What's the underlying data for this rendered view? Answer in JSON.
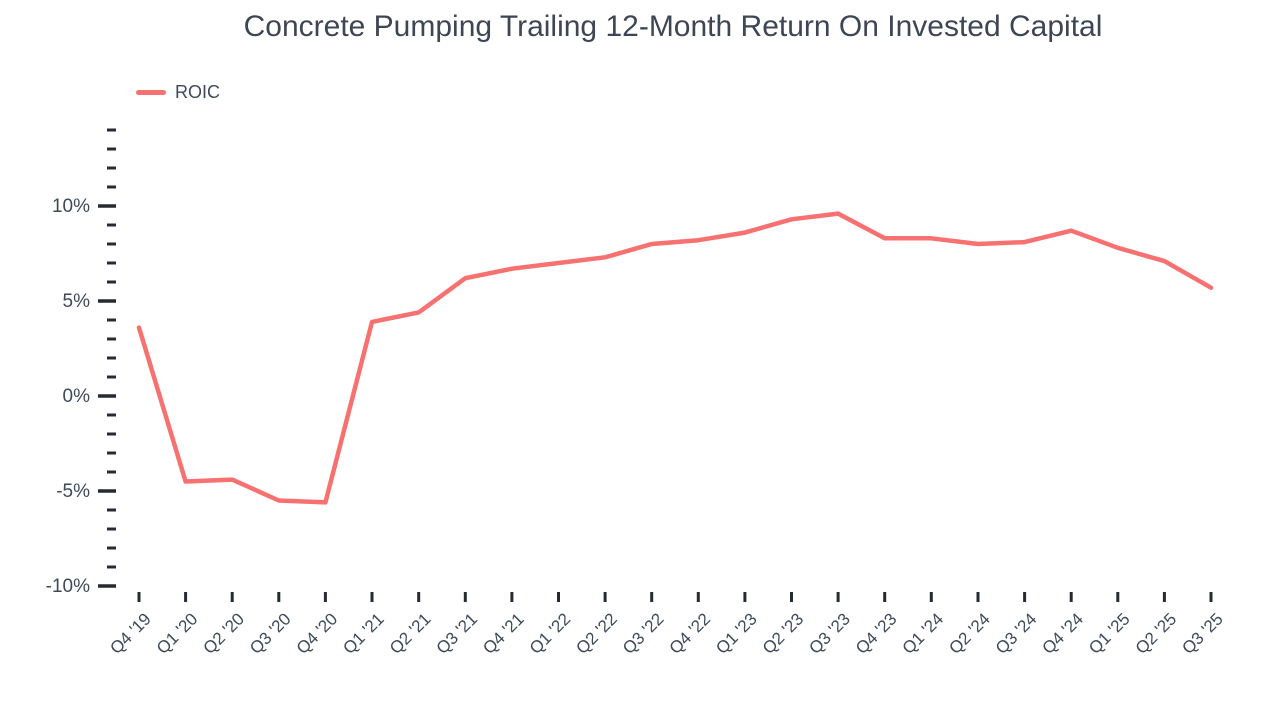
{
  "chart_data": {
    "type": "line",
    "title": "Concrete Pumping Trailing 12-Month Return On Invested Capital",
    "categories": [
      "Q4 '19",
      "Q1 '20",
      "Q2 '20",
      "Q3 '20",
      "Q4 '20",
      "Q1 '21",
      "Q2 '21",
      "Q3 '21",
      "Q4 '21",
      "Q1 '22",
      "Q2 '22",
      "Q3 '22",
      "Q4 '22",
      "Q1 '23",
      "Q2 '23",
      "Q3 '23",
      "Q4 '23",
      "Q1 '24",
      "Q2 '24",
      "Q3 '24",
      "Q4 '24",
      "Q1 '25",
      "Q2 '25",
      "Q3 '25"
    ],
    "series": [
      {
        "name": "ROIC",
        "values": [
          3.6,
          -4.5,
          -4.4,
          -5.5,
          -5.6,
          3.9,
          4.4,
          6.2,
          6.7,
          7.0,
          7.3,
          8.0,
          8.2,
          8.6,
          9.3,
          9.6,
          8.3,
          8.3,
          8.0,
          8.1,
          8.7,
          7.8,
          7.1,
          5.7
        ]
      }
    ],
    "xlabel": "",
    "ylabel": "",
    "ylim": [
      -10,
      14
    ],
    "y_minor_step": 1,
    "y_ticks": [
      {
        "value": 10,
        "label": "10%"
      },
      {
        "value": 5,
        "label": "5%"
      },
      {
        "value": 0,
        "label": "0%"
      },
      {
        "value": -5,
        "label": "-5%"
      },
      {
        "value": -10,
        "label": "-10%"
      }
    ],
    "grid": false,
    "legend_position": "top-left",
    "line_color": "#f87171",
    "text_color": "#3e4a59",
    "tick_color": "#262b33"
  }
}
